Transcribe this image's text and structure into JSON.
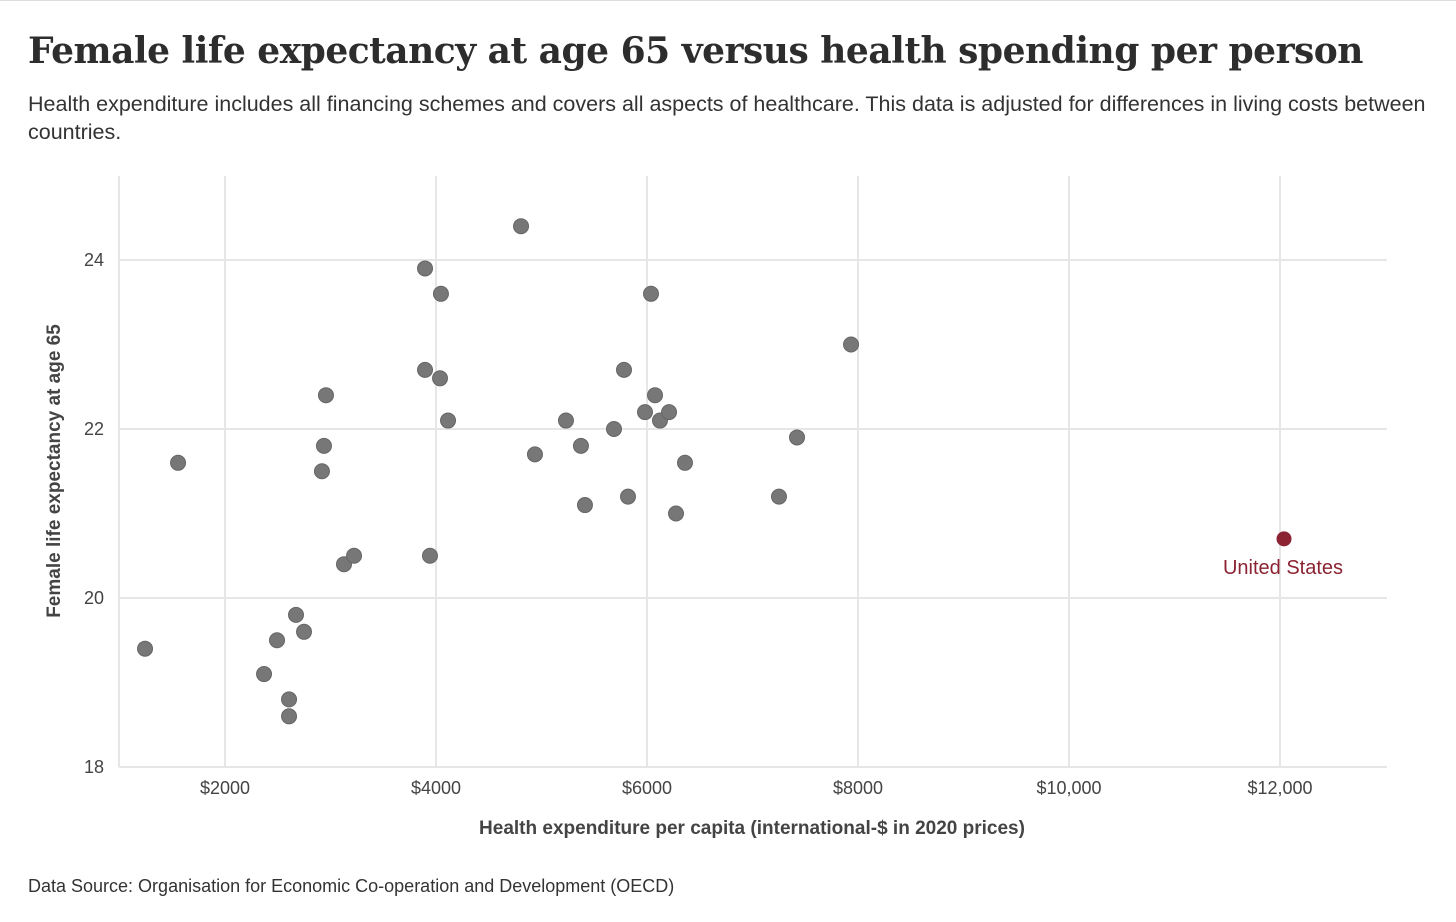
{
  "title": "Female life expectancy at age 65 versus health spending per person",
  "subtitle": "Health expenditure includes all financing schemes and covers all aspects of healthcare. This data is adjusted for differences in living costs between countries.",
  "source": "Data Source: Organisation for Economic Co-operation and Development (OECD)",
  "colors": {
    "point": "#777777",
    "highlight": "#8b2332",
    "grid": "#e6e6e6"
  },
  "chart_data": {
    "type": "scatter",
    "title": "Female life expectancy at age 65 versus health spending per person",
    "xlabel": "Health expenditure per capita (international-$ in 2020 prices)",
    "ylabel": "Female life expectancy at age 65",
    "xlim": [
      1000,
      13000
    ],
    "ylim": [
      18,
      25
    ],
    "x_ticks": [
      2000,
      4000,
      6000,
      8000,
      10000,
      12000
    ],
    "x_tick_labels": [
      "$2000",
      "$4000",
      "$6000",
      "$8000",
      "$10,000",
      "$12,000"
    ],
    "y_ticks": [
      18,
      20,
      22,
      24
    ],
    "y_tick_labels": [
      "18",
      "20",
      "22",
      "24"
    ],
    "grid": true,
    "points": [
      {
        "x": 1242,
        "y": 19.4
      },
      {
        "x": 1555,
        "y": 21.6
      },
      {
        "x": 2370,
        "y": 19.1
      },
      {
        "x": 2493,
        "y": 19.5
      },
      {
        "x": 2607,
        "y": 18.8
      },
      {
        "x": 2607,
        "y": 18.6
      },
      {
        "x": 2673,
        "y": 19.8
      },
      {
        "x": 2749,
        "y": 19.6
      },
      {
        "x": 2919,
        "y": 21.5
      },
      {
        "x": 2938,
        "y": 21.8
      },
      {
        "x": 2957,
        "y": 22.4
      },
      {
        "x": 3128,
        "y": 20.4
      },
      {
        "x": 3223,
        "y": 20.5
      },
      {
        "x": 3896,
        "y": 23.9
      },
      {
        "x": 3896,
        "y": 22.7
      },
      {
        "x": 3943,
        "y": 20.5
      },
      {
        "x": 4047,
        "y": 23.6
      },
      {
        "x": 4038,
        "y": 22.6
      },
      {
        "x": 4114,
        "y": 22.1
      },
      {
        "x": 4806,
        "y": 24.4
      },
      {
        "x": 4938,
        "y": 21.7
      },
      {
        "x": 5232,
        "y": 22.1
      },
      {
        "x": 5374,
        "y": 21.8
      },
      {
        "x": 5412,
        "y": 21.1
      },
      {
        "x": 5687,
        "y": 22.0
      },
      {
        "x": 5782,
        "y": 22.7
      },
      {
        "x": 5820,
        "y": 21.2
      },
      {
        "x": 5981,
        "y": 22.2
      },
      {
        "x": 6038,
        "y": 23.6
      },
      {
        "x": 6076,
        "y": 22.4
      },
      {
        "x": 6123,
        "y": 22.1
      },
      {
        "x": 6209,
        "y": 22.2
      },
      {
        "x": 6275,
        "y": 21.0
      },
      {
        "x": 6360,
        "y": 21.6
      },
      {
        "x": 7251,
        "y": 21.2
      },
      {
        "x": 7422,
        "y": 21.9
      },
      {
        "x": 7934,
        "y": 23.0
      }
    ],
    "highlight": {
      "label": "United States",
      "x": 12038,
      "y": 20.7
    }
  }
}
